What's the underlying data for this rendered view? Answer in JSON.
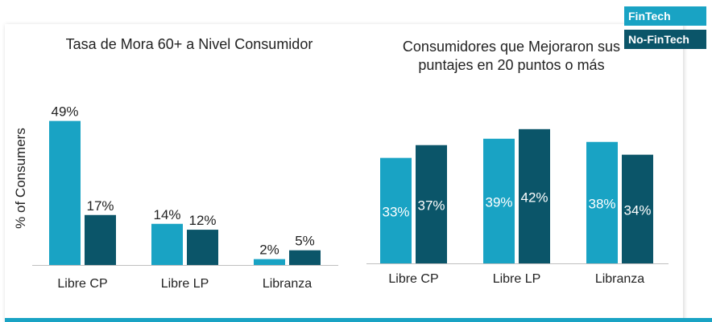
{
  "legend": {
    "fintech": "FinTech",
    "no_fintech": "No-FinTech"
  },
  "colors": {
    "fintech": "#19a3c4",
    "no_fintech": "#0b5569",
    "axis": "#bfbfbf",
    "text": "#222222"
  },
  "chart_data": [
    {
      "type": "bar",
      "title": "Tasa de Mora 60+ a Nivel Consumidor",
      "ylabel": "% of Consumers",
      "xlabel": "",
      "categories": [
        "Libre CP",
        "Libre LP",
        "Libranza"
      ],
      "series": [
        {
          "name": "FinTech",
          "values": [
            49,
            14,
            2
          ],
          "labels": [
            "49%",
            "14%",
            "2%"
          ]
        },
        {
          "name": "No-FinTech",
          "values": [
            17,
            12,
            5
          ],
          "labels": [
            "17%",
            "12%",
            "5%"
          ]
        }
      ],
      "ylim": [
        0,
        56
      ],
      "label_position": "above"
    },
    {
      "type": "bar",
      "title": "Consumidores que Mejoraron sus puntajes en 20 puntos o más",
      "ylabel": "",
      "xlabel": "",
      "categories": [
        "Libre CP",
        "Libre LP",
        "Libranza"
      ],
      "series": [
        {
          "name": "FinTech",
          "values": [
            33,
            39,
            38
          ],
          "labels": [
            "33%",
            "39%",
            "38%"
          ]
        },
        {
          "name": "No-FinTech",
          "values": [
            37,
            42,
            34
          ],
          "labels": [
            "37%",
            "42%",
            "34%"
          ]
        }
      ],
      "ylim": [
        0,
        51
      ],
      "label_position": "inside"
    }
  ]
}
